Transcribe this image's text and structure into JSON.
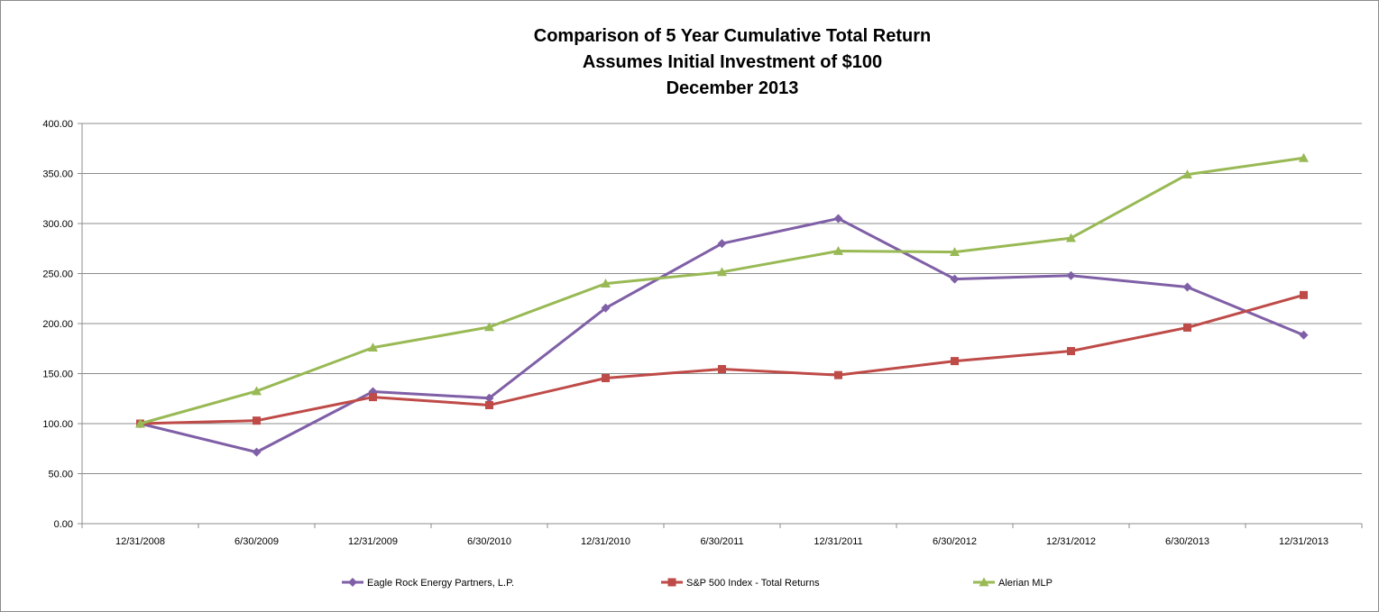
{
  "chart_data": {
    "type": "line",
    "title_lines": [
      "Comparison of 5 Year Cumulative Total Return",
      "Assumes Initial Investment of $100",
      "December 2013"
    ],
    "xlabel": "",
    "ylabel": "",
    "categories": [
      "12/31/2008",
      "6/30/2009",
      "12/31/2009",
      "6/30/2010",
      "12/31/2010",
      "6/30/2011",
      "12/31/2011",
      "6/30/2012",
      "12/31/2012",
      "6/30/2013",
      "12/31/2013"
    ],
    "ylim": [
      0,
      400
    ],
    "yticks": [
      0,
      50,
      100,
      150,
      200,
      250,
      300,
      350,
      400
    ],
    "ytick_labels": [
      "0.00",
      "50.00",
      "100.00",
      "150.00",
      "200.00",
      "250.00",
      "300.00",
      "350.00",
      "400.00"
    ],
    "grid": true,
    "legend_position": "bottom",
    "series": [
      {
        "name": "Eagle Rock Energy Partners, L.P.",
        "color": "#7f5fa6",
        "marker": "diamond",
        "values": [
          100,
          71.5,
          132,
          125.5,
          215.5,
          280,
          305,
          244.5,
          248,
          236.5,
          188.5
        ]
      },
      {
        "name": "S&P 500 Index - Total Returns",
        "color": "#be4b48",
        "marker": "square",
        "values": [
          100,
          103,
          126.5,
          118.5,
          145.5,
          154.5,
          148.5,
          162.5,
          172.5,
          196,
          228.5
        ]
      },
      {
        "name": "Alerian MLP",
        "color": "#98b954",
        "marker": "triangle",
        "values": [
          100,
          132.5,
          176,
          196.5,
          240,
          251.5,
          272.5,
          271.5,
          285.5,
          349,
          365.5
        ]
      }
    ]
  }
}
